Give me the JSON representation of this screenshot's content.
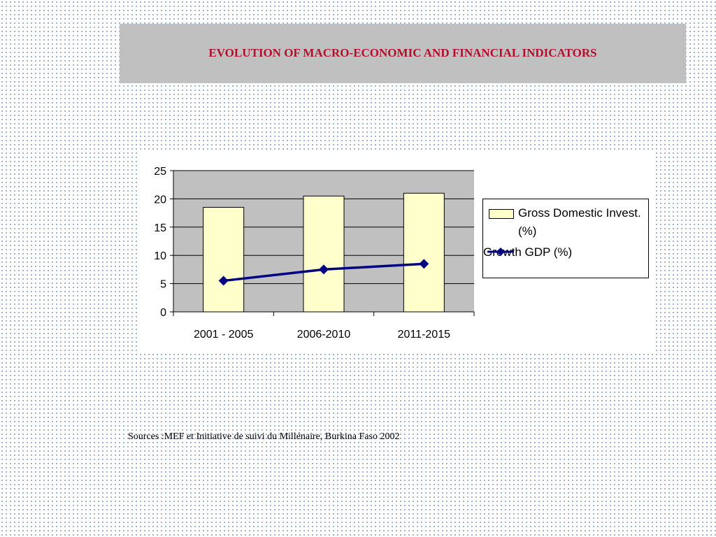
{
  "header": {
    "title": "EVOLUTION OF MACRO-ECONOMIC AND FINANCIAL INDICATORS"
  },
  "chart_data": {
    "type": "bar",
    "categories": [
      "2001 - 2005",
      "2006-2010",
      "2011-2015"
    ],
    "series": [
      {
        "name": "Gross Domestic Invest. (%)",
        "kind": "bar",
        "values": [
          18.5,
          20.5,
          21
        ],
        "color": "#ffffcc"
      },
      {
        "name": "Growth GDP (%)",
        "kind": "line",
        "values": [
          5.5,
          7.5,
          8.5
        ],
        "color": "#000080"
      }
    ],
    "yticks": [
      0,
      5,
      10,
      15,
      20,
      25
    ],
    "ylim": [
      0,
      25
    ],
    "grid": true,
    "plot_background": "#c0c0c0",
    "legend_position": "right"
  },
  "footer": {
    "source": "Sources :MEF et Initiative de suivi du Millénaire, Burkina Faso 2002"
  }
}
